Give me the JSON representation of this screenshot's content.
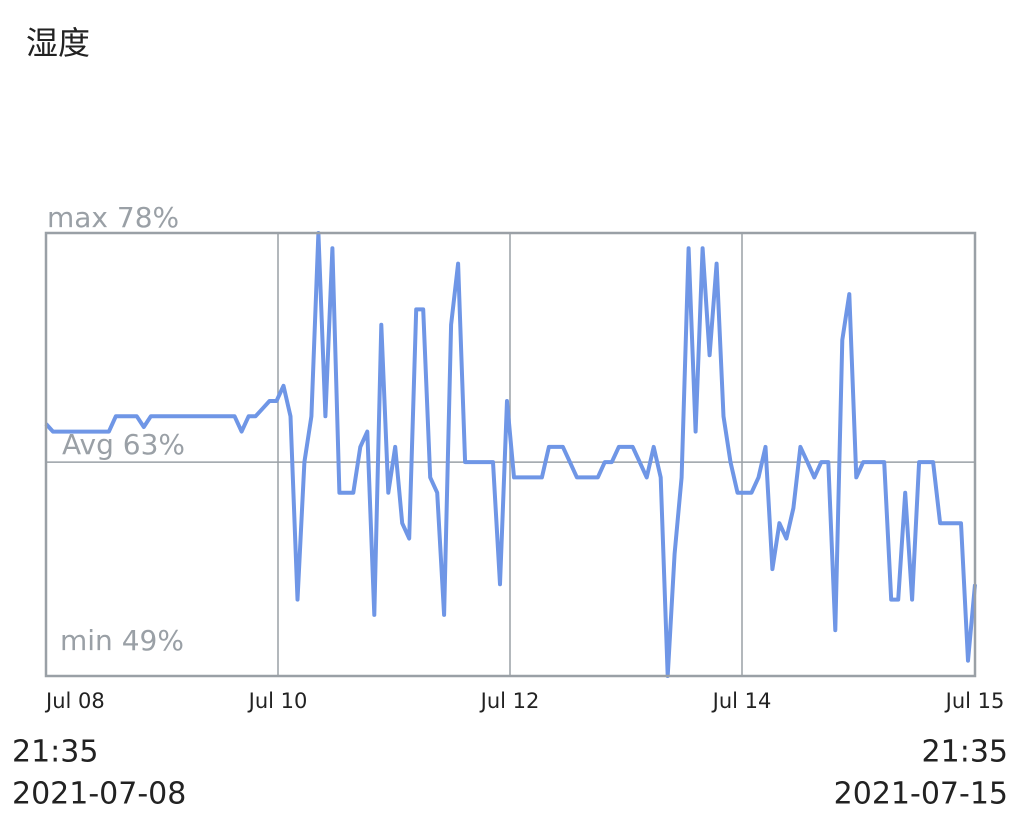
{
  "title": "湿度",
  "chart_data": {
    "type": "line",
    "ylim": [
      49,
      78
    ],
    "color": "#6f96e6",
    "max": {
      "value": 78,
      "label": "max 78%"
    },
    "avg": {
      "value": 63,
      "label": "Avg 63%"
    },
    "min": {
      "value": 49,
      "label": "min 49%"
    },
    "xticks": [
      "Jul 08",
      "Jul 10",
      "Jul 12",
      "Jul 14",
      "Jul 15"
    ],
    "values": [
      65.5,
      65,
      65,
      65,
      65,
      65,
      65,
      65,
      65,
      65,
      66,
      66,
      66,
      66,
      65.3,
      66,
      66,
      66,
      66,
      66,
      66,
      66,
      66,
      66,
      66,
      66,
      66,
      66,
      65,
      66,
      66,
      66.5,
      67,
      67,
      68,
      66,
      54,
      63,
      66,
      78,
      66,
      77,
      61,
      61,
      61,
      64,
      65,
      53,
      72,
      61,
      64,
      59,
      58,
      73,
      73,
      62,
      61,
      53,
      72,
      76,
      63,
      63,
      63,
      63,
      63,
      55,
      67,
      62,
      62,
      62,
      62,
      62,
      64,
      64,
      64,
      63,
      62,
      62,
      62,
      62,
      63,
      63,
      64,
      64,
      64,
      63,
      62,
      64,
      62,
      49,
      57,
      62,
      77,
      65,
      77,
      70,
      76,
      66,
      63,
      61,
      61,
      61,
      62,
      64,
      56,
      59,
      58,
      60,
      64,
      63,
      62,
      63,
      63,
      52,
      71,
      74,
      62,
      63,
      63,
      63,
      63,
      54,
      54,
      61,
      54,
      63,
      63,
      63,
      59,
      59,
      59,
      59,
      50,
      55
    ]
  },
  "start": {
    "time": "21:35",
    "date": "2021-07-08"
  },
  "end": {
    "time": "21:35",
    "date": "2021-07-15"
  }
}
